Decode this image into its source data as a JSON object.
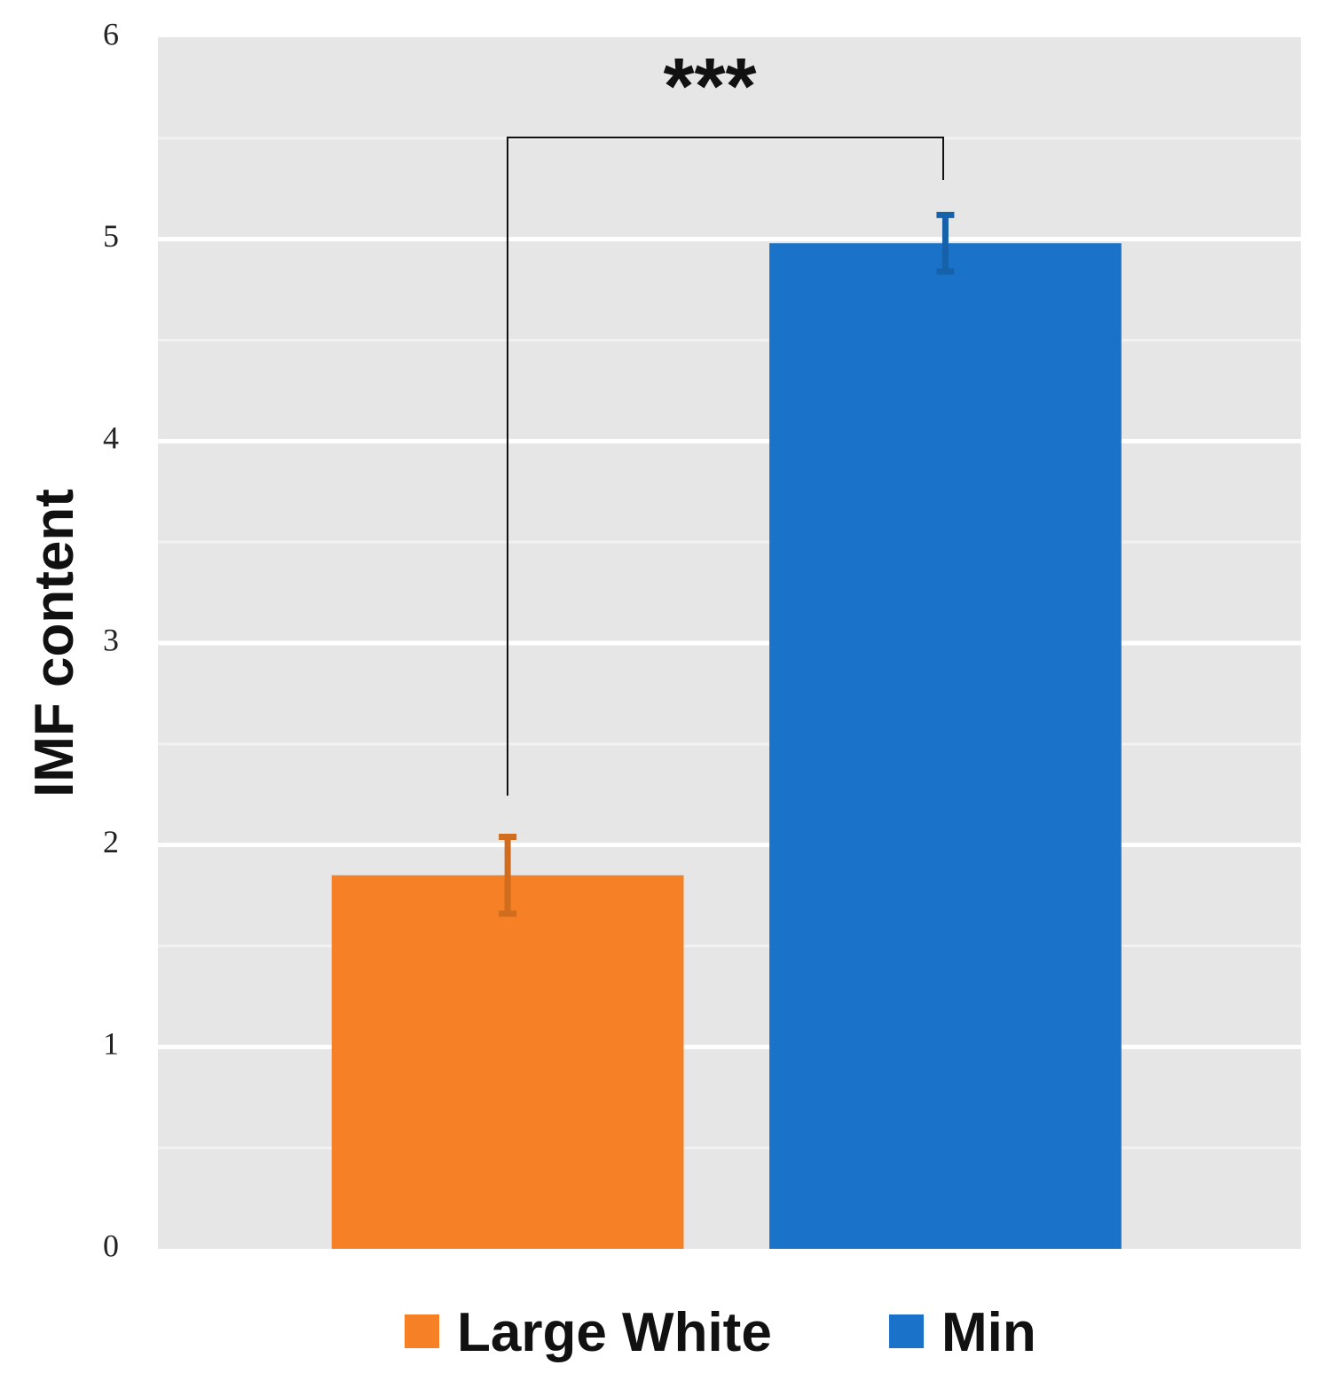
{
  "chart_data": {
    "type": "bar",
    "y_label": "IMF content",
    "annotation": "***",
    "series": [
      {
        "name": "Large White",
        "color": "#f58025",
        "values": [
          1.85
        ],
        "errors": [
          0.19
        ]
      },
      {
        "name": "Min",
        "color": "#1a73c8",
        "values": [
          4.98
        ],
        "errors": [
          0.14
        ]
      }
    ],
    "ylim": [
      0,
      6
    ],
    "yticks": [
      0,
      1,
      2,
      3,
      4,
      5,
      6
    ],
    "minor_yticks": [
      0.5,
      1.5,
      2.5,
      3.5,
      4.5,
      5.5
    ],
    "grid": true,
    "legend": "bottom"
  }
}
